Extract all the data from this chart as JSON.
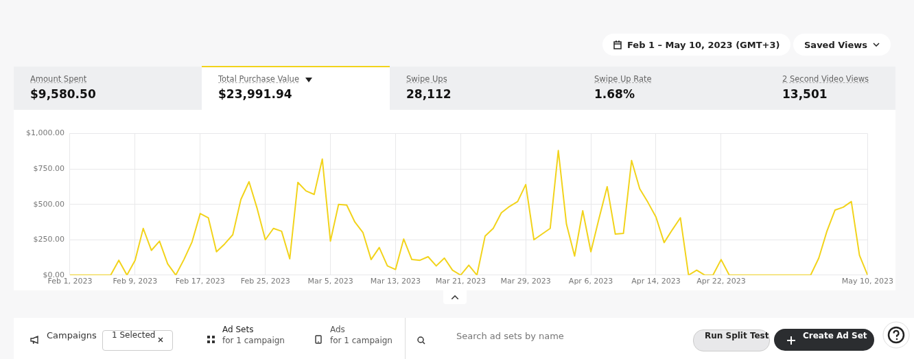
{
  "chart_data": [
    {
      "type": "other",
      "annotations": [
        "Feb 1 – May 10, 2023 (GMT+3)",
        "Saved Views",
        "Amount Spent",
        "$9,580.50",
        "Total Purchase Value",
        "$23,991.94",
        "Swipe Ups",
        "28,112",
        "Swipe Up Rate",
        "1.68%",
        "2 Second Video Views",
        "13,501"
      ]
    },
    {
      "type": "line",
      "color": "#f2d31b",
      "grid": true,
      "marker": "none",
      "line_style": "solid",
      "x": [
        "2023-02-01",
        "2023-02-02",
        "2023-02-03",
        "2023-02-04",
        "2023-02-05",
        "2023-02-06",
        "2023-02-07",
        "2023-02-08",
        "2023-02-09",
        "2023-02-10",
        "2023-02-11",
        "2023-02-12",
        "2023-02-13",
        "2023-02-14",
        "2023-02-15",
        "2023-02-16",
        "2023-02-17",
        "2023-02-18",
        "2023-02-19",
        "2023-02-20",
        "2023-02-21",
        "2023-02-22",
        "2023-02-23",
        "2023-02-24",
        "2023-02-25",
        "2023-02-26",
        "2023-02-27",
        "2023-02-28",
        "2023-03-01",
        "2023-03-02",
        "2023-03-03",
        "2023-03-04",
        "2023-03-05",
        "2023-03-06",
        "2023-03-07",
        "2023-03-08",
        "2023-03-09",
        "2023-03-10",
        "2023-03-11",
        "2023-03-12",
        "2023-03-13",
        "2023-03-14",
        "2023-03-15",
        "2023-03-16",
        "2023-03-17",
        "2023-03-18",
        "2023-03-19",
        "2023-03-20",
        "2023-03-21",
        "2023-03-22",
        "2023-03-23",
        "2023-03-24",
        "2023-03-25",
        "2023-03-26",
        "2023-03-27",
        "2023-03-28",
        "2023-03-29",
        "2023-03-30",
        "2023-03-31",
        "2023-04-01",
        "2023-04-02",
        "2023-04-03",
        "2023-04-04",
        "2023-04-05",
        "2023-04-06",
        "2023-04-07",
        "2023-04-08",
        "2023-04-09",
        "2023-04-10",
        "2023-04-11",
        "2023-04-12",
        "2023-04-13",
        "2023-04-14",
        "2023-04-15",
        "2023-04-16",
        "2023-04-17",
        "2023-04-18",
        "2023-04-19",
        "2023-04-20",
        "2023-04-21",
        "2023-04-22",
        "2023-04-23",
        "2023-04-24",
        "2023-04-25",
        "2023-04-26",
        "2023-04-27",
        "2023-04-28",
        "2023-04-29",
        "2023-04-30",
        "2023-05-01",
        "2023-05-02",
        "2023-05-03",
        "2023-05-04",
        "2023-05-05",
        "2023-05-06",
        "2023-05-07",
        "2023-05-08",
        "2023-05-09",
        "2023-05-10"
      ],
      "values": [
        0,
        0,
        0,
        0,
        0,
        0,
        105,
        0,
        105,
        330,
        175,
        240,
        80,
        0,
        110,
        235,
        435,
        405,
        165,
        220,
        285,
        535,
        660,
        470,
        250,
        330,
        310,
        115,
        655,
        595,
        570,
        820,
        240,
        500,
        495,
        375,
        300,
        110,
        195,
        65,
        40,
        255,
        110,
        105,
        130,
        65,
        120,
        35,
        0,
        70,
        0,
        275,
        330,
        440,
        485,
        520,
        640,
        250,
        290,
        330,
        880,
        360,
        135,
        455,
        165,
        400,
        625,
        290,
        295,
        810,
        610,
        515,
        410,
        230,
        320,
        405,
        0,
        35,
        0,
        0,
        110,
        0,
        0,
        0,
        0,
        0,
        0,
        0,
        0,
        0,
        0,
        0,
        120,
        310,
        460,
        480,
        520,
        140,
        0
      ],
      "xlim": [
        "2023-02-01",
        "2023-05-10"
      ],
      "xticks": [
        {
          "value": "2023-02-01",
          "label": "Feb 1, 2023"
        },
        {
          "value": "2023-02-09",
          "label": "Feb 9, 2023"
        },
        {
          "value": "2023-02-17",
          "label": "Feb 17, 2023"
        },
        {
          "value": "2023-02-25",
          "label": "Feb 25, 2023"
        },
        {
          "value": "2023-03-05",
          "label": "Mar 5, 2023"
        },
        {
          "value": "2023-03-13",
          "label": "Mar 13, 2023"
        },
        {
          "value": "2023-03-21",
          "label": "Mar 21, 2023"
        },
        {
          "value": "2023-03-29",
          "label": "Mar 29, 2023"
        },
        {
          "value": "2023-04-06",
          "label": "Apr 6, 2023"
        },
        {
          "value": "2023-04-14",
          "label": "Apr 14, 2023"
        },
        {
          "value": "2023-04-22",
          "label": "Apr 22, 2023"
        },
        {
          "value": "2023-05-10",
          "label": "May 10, 2023"
        }
      ],
      "ylim": [
        0,
        1000
      ],
      "yticks": [
        {
          "value": 0,
          "label": "$0.00"
        },
        {
          "value": 250,
          "label": "$250.00"
        },
        {
          "value": 500,
          "label": "$500.00"
        },
        {
          "value": 750,
          "label": "$750.00"
        },
        {
          "value": 1000,
          "label": "$1,000.00"
        }
      ]
    },
    {
      "type": "other",
      "annotations": [
        "Campaigns",
        "1 Selected",
        "Ad Sets",
        "for 1 campaign",
        "Ads",
        "for 1 campaign",
        "Search ad sets by name",
        "Run Split Test",
        "Create Ad Set"
      ]
    }
  ]
}
